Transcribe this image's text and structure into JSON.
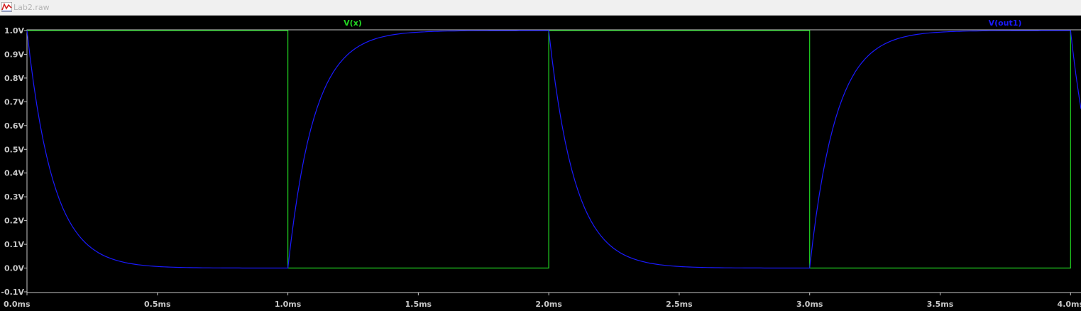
{
  "window": {
    "title": "Lab2.raw",
    "icon": "waveform-icon"
  },
  "colors": {
    "background": "#000000",
    "axis": "#c8c8c8",
    "trace_vx": "#22d622",
    "trace_vout1": "#1a1aff"
  },
  "chart_data": {
    "type": "line",
    "xlim": [
      0,
      4.04
    ],
    "ylim": [
      -0.1,
      1.0
    ],
    "x_ticks": [
      0,
      0.5,
      1.0,
      1.5,
      2.0,
      2.5,
      3.0,
      3.5,
      4.0
    ],
    "x_tick_labels": [
      "0.0ms",
      "0.5ms",
      "1.0ms",
      "1.5ms",
      "2.0ms",
      "2.5ms",
      "3.0ms",
      "3.5ms",
      "4.0ms"
    ],
    "y_ticks": [
      1.0,
      0.9,
      0.8,
      0.7,
      0.6,
      0.5,
      0.4,
      0.3,
      0.2,
      0.1,
      0.0,
      -0.1
    ],
    "y_tick_labels": [
      "1.0V",
      "0.9V",
      "0.8V",
      "0.7V",
      "0.6V",
      "0.5V",
      "0.4V",
      "0.3V",
      "0.2V",
      "0.1V",
      "0.0V",
      "-0.1V"
    ],
    "grid": false,
    "series": [
      {
        "name": "V(x)",
        "style": "square-wave",
        "x": [
          0,
          1.0,
          1.0,
          2.0,
          2.0,
          3.0,
          3.0,
          4.0,
          4.0
        ],
        "y": [
          1,
          1,
          0,
          0,
          1,
          1,
          0,
          0,
          1
        ]
      },
      {
        "name": "V(out1)",
        "style": "rc-response",
        "x": [
          0.0,
          0.1,
          0.2,
          0.3,
          0.4,
          0.5,
          0.6,
          0.8,
          1.0,
          1.1,
          1.2,
          1.3,
          1.4,
          1.5,
          1.6,
          1.8,
          2.0,
          2.1,
          2.2,
          2.3,
          2.4,
          2.5,
          2.6,
          2.8,
          3.0,
          3.1,
          3.2,
          3.3,
          3.4,
          3.5,
          3.6,
          3.8,
          4.0,
          4.04
        ],
        "y": [
          1.0,
          0.61,
          0.37,
          0.22,
          0.14,
          0.08,
          0.05,
          0.02,
          0.0,
          0.39,
          0.63,
          0.78,
          0.86,
          0.92,
          0.95,
          0.98,
          1.0,
          0.61,
          0.37,
          0.22,
          0.14,
          0.08,
          0.05,
          0.02,
          0.0,
          0.39,
          0.63,
          0.78,
          0.86,
          0.92,
          0.95,
          0.98,
          1.0,
          0.82
        ]
      }
    ]
  }
}
